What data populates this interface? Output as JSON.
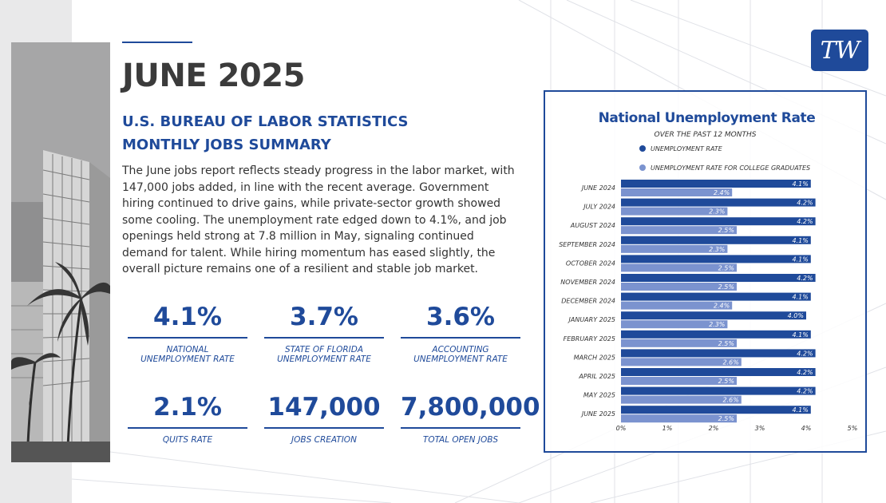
{
  "header": {
    "month": "JUNE 2025",
    "subtitle_line1": "U.S. BUREAU OF LABOR STATISTICS",
    "subtitle_line2": "MONTHLY JOBS SUMMARY"
  },
  "summary": "The June jobs report reflects steady progress in the labor market, with 147,000 jobs added, in line with the recent average. Government hiring continued to drive gains, while private-sector growth showed some cooling. The unemployment rate edged down to 4.1%, and job openings held strong at 7.8 million in May, signaling continued demand for talent. While hiring momentum has eased slightly, the overall picture remains one of a resilient and stable job market.",
  "stats": [
    {
      "value": "4.1%",
      "label_line1": "NATIONAL",
      "label_line2": "UNEMPLOYMENT RATE"
    },
    {
      "value": "3.7%",
      "label_line1": "STATE OF FLORIDA",
      "label_line2": "UNEMPLOYMENT RATE"
    },
    {
      "value": "3.6%",
      "label_line1": "ACCOUNTING",
      "label_line2": "UNEMPLOYMENT RATE"
    },
    {
      "value": "2.1%",
      "label_line1": "QUITS RATE",
      "label_line2": ""
    },
    {
      "value": "147,000",
      "label_line1": "JOBS CREATION",
      "label_line2": ""
    },
    {
      "value": "7,800,000",
      "label_line1": "TOTAL OPEN JOBS",
      "label_line2": ""
    }
  ],
  "logo": {
    "text": "TW"
  },
  "colors": {
    "accent": "#1f4a9a",
    "series1": "#1f4a9a",
    "series2": "#7b93cf"
  },
  "chart_data": {
    "type": "bar",
    "orientation": "horizontal",
    "title": "National Unemployment Rate",
    "subtitle": "OVER THE PAST 12 MONTHS",
    "categories": [
      "JUNE 2024",
      "JULY 2024",
      "AUGUST 2024",
      "SEPTEMBER 2024",
      "OCTOBER 2024",
      "NOVEMBER 2024",
      "DECEMBER 2024",
      "JANUARY 2025",
      "FEBRUARY 2025",
      "MARCH 2025",
      "APRIL 2025",
      "MAY 2025",
      "JUNE 2025"
    ],
    "series": [
      {
        "name": "UNEMPLOYMENT RATE",
        "values": [
          4.1,
          4.2,
          4.2,
          4.1,
          4.1,
          4.2,
          4.1,
          4.0,
          4.1,
          4.2,
          4.2,
          4.2,
          4.1
        ]
      },
      {
        "name": "UNEMPLOYMENT RATE FOR COLLEGE GRADUATES",
        "values": [
          2.4,
          2.3,
          2.5,
          2.3,
          2.5,
          2.5,
          2.4,
          2.3,
          2.5,
          2.6,
          2.5,
          2.6,
          2.5
        ]
      }
    ],
    "value_suffix": "%",
    "xlim": [
      0,
      5
    ],
    "xticks": [
      "0%",
      "1%",
      "2%",
      "3%",
      "4%",
      "5%"
    ],
    "legend_position": "top-left",
    "grid": false
  }
}
